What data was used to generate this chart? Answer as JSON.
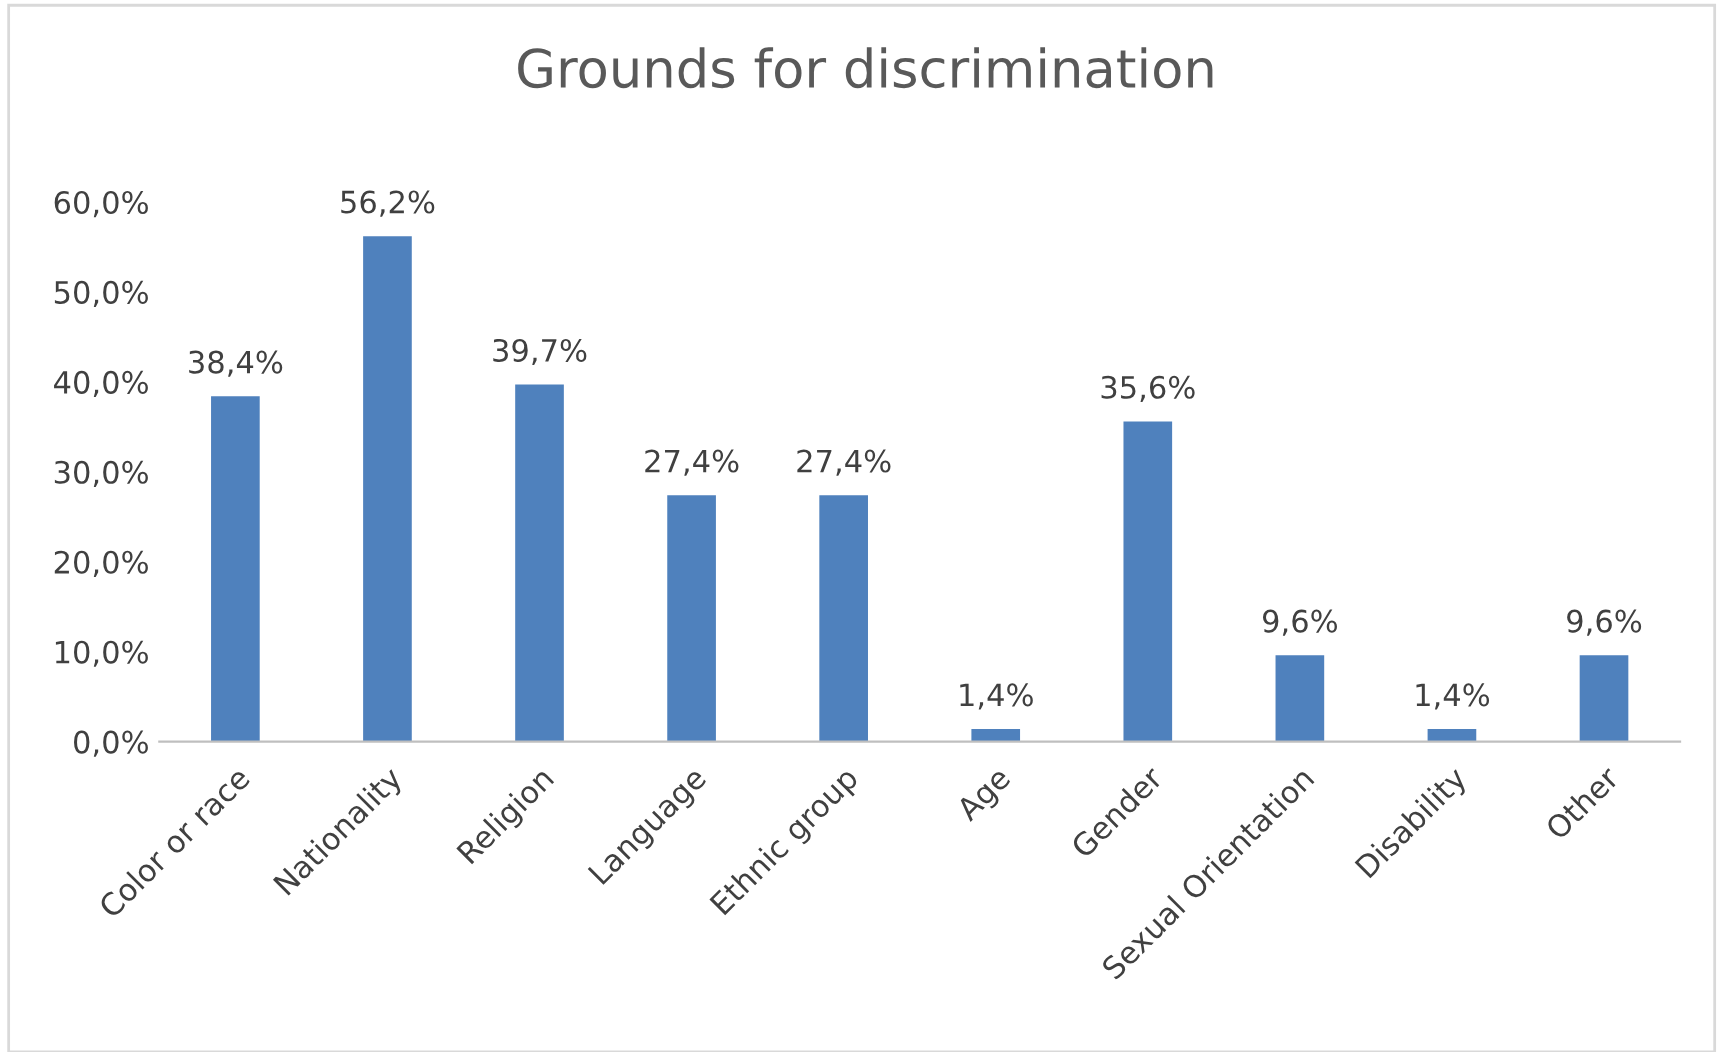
{
  "chart_data": {
    "type": "bar",
    "title": "Grounds for discrimination",
    "categories": [
      "Color or race",
      "Nationality",
      "Religion",
      "Language",
      "Ethnic group",
      "Age",
      "Gender",
      "Sexual Orientation",
      "Disability",
      "Other"
    ],
    "values": [
      38.4,
      56.2,
      39.7,
      27.4,
      27.4,
      1.4,
      35.6,
      9.6,
      1.4,
      9.6
    ],
    "value_labels": [
      "38,4%",
      "56,2%",
      "39,7%",
      "27,4%",
      "27,4%",
      "1,4%",
      "35,6%",
      "9,6%",
      "1,4%",
      "9,6%"
    ],
    "color": "#4f81bd",
    "ylim": [
      0,
      60
    ],
    "yticks": [
      {
        "value": 0,
        "label": "0,0%"
      },
      {
        "value": 10,
        "label": "10,0%"
      },
      {
        "value": 20,
        "label": "20,0%"
      },
      {
        "value": 30,
        "label": "30,0%"
      },
      {
        "value": 40,
        "label": "40,0%"
      },
      {
        "value": 50,
        "label": "50,0%"
      },
      {
        "value": 60,
        "label": "60,0%"
      }
    ],
    "grid": false
  }
}
